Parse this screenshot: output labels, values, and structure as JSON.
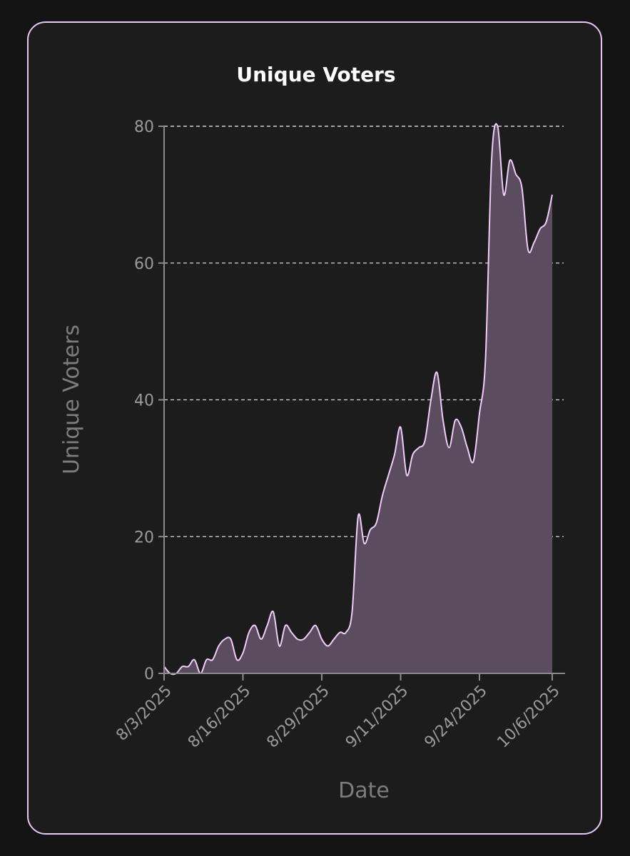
{
  "chart_data": {
    "type": "area",
    "title": "Unique Voters",
    "xlabel": "Date",
    "ylabel": "Unique Voters",
    "ylim": [
      0,
      80
    ],
    "yticks": [
      0,
      20,
      40,
      60,
      80
    ],
    "xlim": [
      "8/3/2025",
      "10/6/2025"
    ],
    "xticks": [
      "8/3/2025",
      "8/16/2025",
      "8/29/2025",
      "9/11/2025",
      "9/24/2025",
      "10/6/2025"
    ],
    "grid": "horizontal dashed",
    "legend": "none",
    "colors": {
      "line": "#f0cdfa",
      "fill": "#5b4d5f",
      "grid": "#d8d8d8",
      "axis": "#8a8a8a"
    },
    "series": [
      {
        "x": [
          "8/3/2025",
          "8/4/2025",
          "8/5/2025",
          "8/6/2025",
          "8/7/2025",
          "8/8/2025",
          "8/9/2025",
          "8/10/2025",
          "8/11/2025",
          "8/12/2025",
          "8/13/2025",
          "8/14/2025",
          "8/15/2025",
          "8/16/2025",
          "8/17/2025",
          "8/18/2025",
          "8/19/2025",
          "8/20/2025",
          "8/21/2025",
          "8/22/2025",
          "8/23/2025",
          "8/24/2025",
          "8/25/2025",
          "8/26/2025",
          "8/27/2025",
          "8/28/2025",
          "8/29/2025",
          "8/30/2025",
          "8/31/2025",
          "9/1/2025",
          "9/2/2025",
          "9/3/2025",
          "9/4/2025",
          "9/5/2025",
          "9/6/2025",
          "9/7/2025",
          "9/8/2025",
          "9/9/2025",
          "9/10/2025",
          "9/11/2025",
          "9/12/2025",
          "9/13/2025",
          "9/14/2025",
          "9/15/2025",
          "9/16/2025",
          "9/17/2025",
          "9/18/2025",
          "9/19/2025",
          "9/20/2025",
          "9/21/2025",
          "9/22/2025",
          "9/23/2025",
          "9/24/2025",
          "9/25/2025",
          "9/26/2025",
          "9/27/2025",
          "9/28/2025",
          "9/29/2025",
          "9/30/2025",
          "10/1/2025",
          "10/2/2025",
          "10/3/2025",
          "10/4/2025",
          "10/5/2025",
          "10/6/2025"
        ],
        "values": [
          1,
          0,
          0,
          1,
          1,
          2,
          0,
          2,
          2,
          4,
          5,
          5,
          2,
          3,
          6,
          7,
          5,
          7,
          9,
          4,
          7,
          6,
          5,
          5,
          6,
          7,
          5,
          4,
          5,
          6,
          6,
          9,
          23,
          19,
          21,
          22,
          26,
          29,
          32,
          36,
          29,
          32,
          33,
          34,
          40,
          44,
          37,
          33,
          37,
          36,
          33,
          31,
          38,
          46,
          75,
          80,
          70,
          75,
          73,
          71,
          62,
          63,
          65,
          66,
          70
        ]
      }
    ]
  }
}
